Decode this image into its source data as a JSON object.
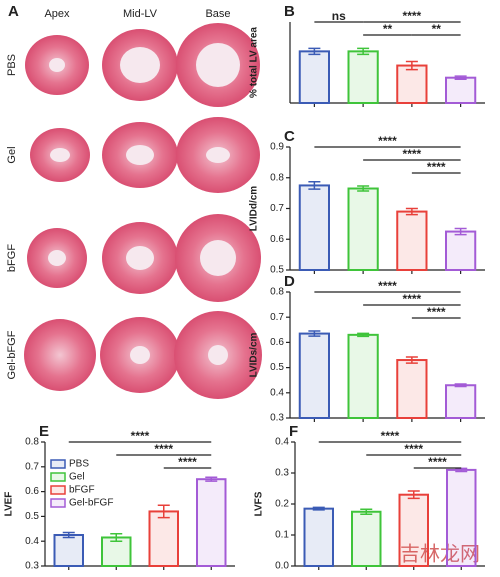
{
  "panel_a": {
    "label": "A",
    "columns": [
      "Apex",
      "Mid-LV",
      "Base"
    ],
    "rows": [
      "PBS",
      "Gel",
      "bFGF",
      "Gel-bFGF"
    ]
  },
  "chart_data": [
    {
      "type": "bar",
      "panel": "B",
      "ylabel": "% total LV area",
      "categories": [
        null,
        null,
        null,
        null
      ],
      "values": [
        25.5,
        25.5,
        18.5,
        12.5
      ],
      "errors": [
        1.5,
        1.5,
        2,
        0.8
      ],
      "colors": [
        "#3b5bb5",
        "#3fc43a",
        "#e8403a",
        "#a35bd6"
      ],
      "ylim": [
        0,
        40
      ],
      "brackets": [
        {
          "pair": [
            0,
            1
          ],
          "label": "ns"
        },
        {
          "pair": [
            1,
            3
          ],
          "label": "****"
        },
        {
          "pair": [
            1,
            2
          ],
          "label": "**"
        },
        {
          "pair": [
            2,
            3
          ],
          "label": "**"
        }
      ]
    },
    {
      "type": "bar",
      "panel": "C",
      "ylabel": "LVIDd/cm",
      "categories": [
        null,
        null,
        null,
        null
      ],
      "values": [
        0.775,
        0.765,
        0.69,
        0.625
      ],
      "errors": [
        0.012,
        0.008,
        0.01,
        0.01
      ],
      "colors": [
        "#3b5bb5",
        "#3fc43a",
        "#e8403a",
        "#a35bd6"
      ],
      "ylim": [
        0.5,
        0.9
      ],
      "yticks": [
        0.5,
        0.6,
        0.7,
        0.8,
        0.9
      ],
      "brackets": [
        {
          "pair": [
            0,
            3
          ],
          "label": "****"
        },
        {
          "pair": [
            1,
            3
          ],
          "label": "****"
        },
        {
          "pair": [
            2,
            3
          ],
          "label": "****"
        }
      ]
    },
    {
      "type": "bar",
      "panel": "D",
      "ylabel": "LVIDs/cm",
      "categories": [
        null,
        null,
        null,
        null
      ],
      "values": [
        0.635,
        0.63,
        0.53,
        0.43
      ],
      "errors": [
        0.01,
        0.006,
        0.012,
        0.005
      ],
      "colors": [
        "#3b5bb5",
        "#3fc43a",
        "#e8403a",
        "#a35bd6"
      ],
      "ylim": [
        0.3,
        0.8
      ],
      "yticks": [
        0.3,
        0.4,
        0.5,
        0.6,
        0.7,
        0.8
      ],
      "brackets": [
        {
          "pair": [
            0,
            3
          ],
          "label": "****"
        },
        {
          "pair": [
            1,
            3
          ],
          "label": "****"
        },
        {
          "pair": [
            2,
            3
          ],
          "label": "****"
        }
      ]
    },
    {
      "type": "bar",
      "panel": "E",
      "ylabel": "LVEF",
      "categories": [
        null,
        null,
        null,
        null
      ],
      "values": [
        0.425,
        0.415,
        0.52,
        0.65
      ],
      "errors": [
        0.01,
        0.015,
        0.025,
        0.008
      ],
      "colors": [
        "#3b5bb5",
        "#3fc43a",
        "#e8403a",
        "#a35bd6"
      ],
      "ylim": [
        0.3,
        0.8
      ],
      "yticks": [
        0.3,
        0.4,
        0.5,
        0.6,
        0.7,
        0.8
      ],
      "legend": [
        "PBS",
        "Gel",
        "bFGF",
        "Gel-bFGF"
      ],
      "brackets": [
        {
          "pair": [
            0,
            3
          ],
          "label": "****"
        },
        {
          "pair": [
            1,
            3
          ],
          "label": "****"
        },
        {
          "pair": [
            2,
            3
          ],
          "label": "****"
        }
      ]
    },
    {
      "type": "bar",
      "panel": "F",
      "ylabel": "LVFS",
      "categories": [
        null,
        null,
        null,
        null
      ],
      "values": [
        0.185,
        0.175,
        0.23,
        0.31
      ],
      "errors": [
        0.004,
        0.008,
        0.012,
        0.005
      ],
      "colors": [
        "#3b5bb5",
        "#3fc43a",
        "#e8403a",
        "#a35bd6"
      ],
      "ylim": [
        0,
        0.4
      ],
      "yticks": [
        {
          "value": 0,
          "label": "0.0"
        },
        0.1,
        0.2,
        0.3,
        0.4
      ],
      "brackets": [
        {
          "pair": [
            0,
            3
          ],
          "label": "****"
        },
        {
          "pair": [
            1,
            3
          ],
          "label": "****"
        },
        {
          "pair": [
            2,
            3
          ],
          "label": "****"
        }
      ]
    }
  ],
  "watermark": "吉林龙网"
}
